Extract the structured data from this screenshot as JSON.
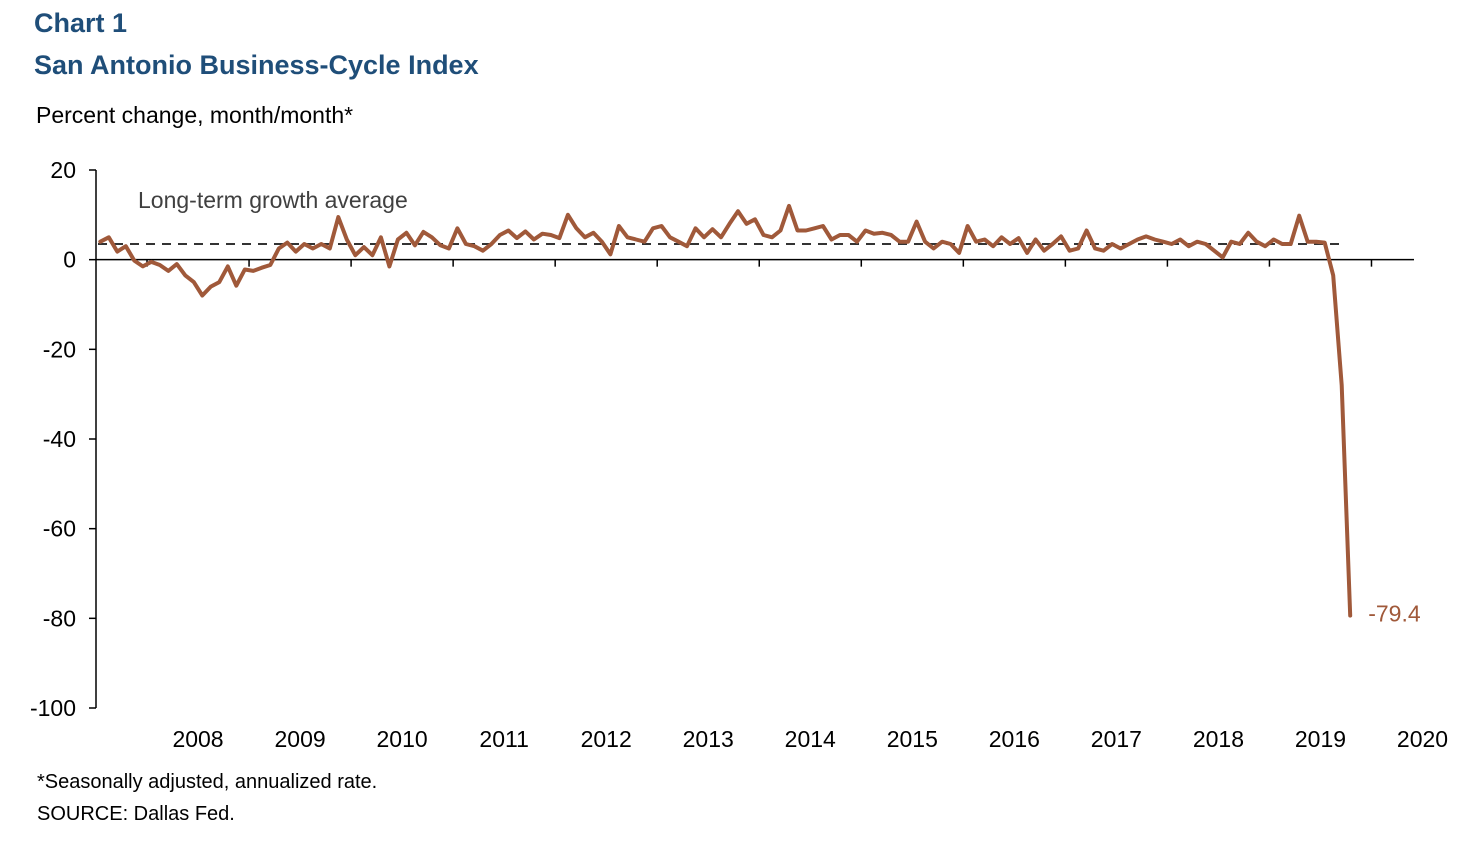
{
  "header": {
    "chart_label": "Chart 1",
    "title": "San Antonio Business-Cycle Index",
    "y_unit": "Percent change, month/month*"
  },
  "footer": {
    "footnote": "*Seasonally adjusted, annualized rate.",
    "source": "SOURCE: Dallas Fed."
  },
  "colors": {
    "series": "#a0593a",
    "title": "#1f4e79",
    "reference_line": "#333333"
  },
  "chart_data": {
    "type": "line",
    "title": "San Antonio Business-Cycle Index",
    "ylabel": "Percent change, month/month*",
    "xlabel": "",
    "ylim": [
      -100,
      20
    ],
    "yticks": [
      20,
      0,
      -20,
      -40,
      -60,
      -80,
      -100
    ],
    "x_start": "2007-07",
    "x_end": "2020-06",
    "x_tick_labels": [
      "2008",
      "2009",
      "2010",
      "2011",
      "2012",
      "2013",
      "2014",
      "2015",
      "2016",
      "2017",
      "2018",
      "2019",
      "2020"
    ],
    "grid": false,
    "legend": "none",
    "reference_line": {
      "label": "Long-term growth average",
      "value": 3.5
    },
    "end_label": "-79.4",
    "series": [
      {
        "start": "2007-07",
        "frequency": "monthly",
        "values": [
          4.0,
          5.0,
          1.8,
          3.0,
          -0.2,
          -1.5,
          -0.5,
          -1.2,
          -2.5,
          -1.0,
          -3.5,
          -5.0,
          -8.0,
          -6.0,
          -5.0,
          -1.5,
          -5.8,
          -2.2,
          -2.5,
          -1.8,
          -1.2,
          2.5,
          3.8,
          1.8,
          3.5,
          2.5,
          3.5,
          2.5,
          9.5,
          4.5,
          1.0,
          2.8,
          1.0,
          5.0,
          -1.5,
          4.5,
          6.0,
          3.2,
          6.2,
          5.0,
          3.2,
          2.5,
          7.0,
          3.5,
          3.0,
          2.0,
          3.5,
          5.5,
          6.5,
          4.8,
          6.3,
          4.5,
          5.8,
          5.5,
          4.8,
          10.0,
          7.0,
          5.0,
          6.0,
          4.0,
          1.2,
          7.5,
          5.0,
          4.5,
          4.0,
          7.0,
          7.5,
          5.0,
          4.0,
          3.0,
          7.0,
          5.0,
          6.8,
          5.0,
          8.0,
          10.8,
          8.0,
          9.0,
          5.5,
          5.0,
          6.5,
          12.0,
          6.5,
          6.5,
          7.0,
          7.5,
          4.5,
          5.5,
          5.5,
          4.0,
          6.5,
          5.8,
          6.0,
          5.5,
          4.0,
          4.0,
          8.5,
          4.0,
          2.5,
          4.0,
          3.5,
          1.5,
          7.5,
          4.0,
          4.5,
          3.0,
          5.0,
          3.5,
          4.8,
          1.5,
          4.5,
          2.0,
          3.5,
          5.2,
          2.0,
          2.5,
          6.5,
          2.5,
          2.0,
          3.5,
          2.5,
          3.5,
          4.5,
          5.2,
          4.5,
          4.0,
          3.5,
          4.5,
          3.0,
          4.0,
          3.5,
          2.0,
          0.5,
          4.0,
          3.5,
          6.0,
          4.0,
          3.0,
          4.5,
          3.5,
          3.5,
          9.8,
          4.0,
          4.0,
          3.8,
          -3.5,
          -28.0,
          -79.4
        ]
      }
    ]
  }
}
